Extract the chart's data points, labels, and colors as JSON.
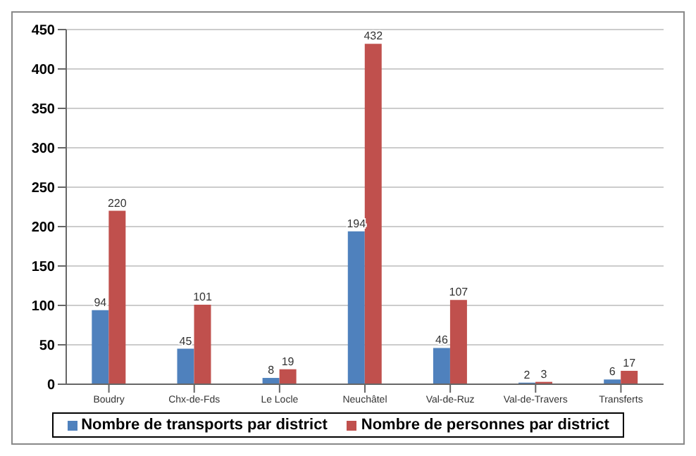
{
  "chart_data": {
    "type": "bar",
    "categories": [
      "Boudry",
      "Chx-de-Fds",
      "Le Locle",
      "Neuchâtel",
      "Val-de-Ruz",
      "Val-de-Travers",
      "Transferts"
    ],
    "series": [
      {
        "name": "Nombre de transports par district",
        "color": "#4f81bd",
        "values": [
          94,
          45,
          8,
          194,
          46,
          2,
          6
        ]
      },
      {
        "name": "Nombre de personnes par district",
        "color": "#c0504d",
        "values": [
          220,
          101,
          19,
          432,
          107,
          3,
          17
        ]
      }
    ],
    "ylim": [
      0,
      450
    ],
    "yticks": [
      0,
      50,
      100,
      150,
      200,
      250,
      300,
      350,
      400,
      450
    ],
    "grid": "y",
    "legend": "bottom",
    "data_labels": true
  }
}
